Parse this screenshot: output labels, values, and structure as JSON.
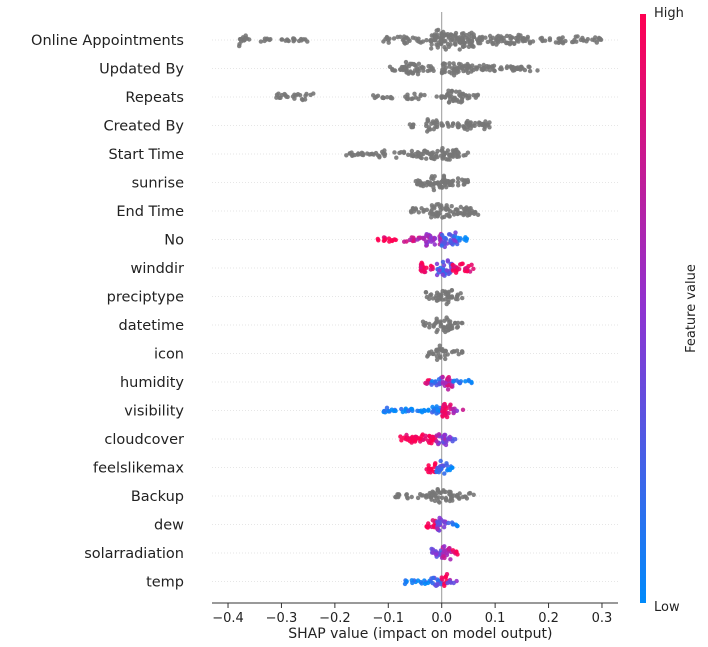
{
  "chart_data": {
    "type": "scatter",
    "subtype": "shap-beeswarm",
    "title": "",
    "xlabel": "SHAP value (impact on model output)",
    "xlim": [
      -0.43,
      0.33
    ],
    "x_ticks": [
      "−0.4",
      "−0.3",
      "−0.2",
      "−0.1",
      "0.0",
      "0.1",
      "0.2",
      "0.3"
    ],
    "x_tick_values": [
      -0.4,
      -0.3,
      -0.2,
      -0.1,
      0.0,
      0.1,
      0.2,
      0.3
    ],
    "colorbar": {
      "title": "Feature value",
      "high_label": "High",
      "low_label": "Low",
      "high_color": "#ff0052",
      "low_color": "#008afb"
    },
    "grid": false,
    "features": [
      {
        "name": "Online Appointments",
        "colored": false,
        "clusters": [
          [
            -0.38,
            -0.36,
            7
          ],
          [
            -0.34,
            -0.32,
            3
          ],
          [
            -0.3,
            -0.25,
            2
          ],
          [
            -0.11,
            -0.02,
            4
          ],
          [
            -0.02,
            0.06,
            11
          ],
          [
            0.06,
            0.15,
            6
          ],
          [
            0.15,
            0.3,
            4
          ]
        ]
      },
      {
        "name": "Updated By",
        "colored": false,
        "clusters": [
          [
            -0.1,
            -0.07,
            3
          ],
          [
            -0.07,
            -0.04,
            8
          ],
          [
            -0.04,
            -0.01,
            4
          ],
          [
            0.0,
            0.03,
            9
          ],
          [
            0.03,
            0.1,
            5
          ],
          [
            0.1,
            0.18,
            3
          ]
        ]
      },
      {
        "name": "Repeats",
        "colored": false,
        "clusters": [
          [
            -0.31,
            -0.24,
            4
          ],
          [
            -0.13,
            -0.09,
            2
          ],
          [
            -0.07,
            -0.03,
            4
          ],
          [
            -0.01,
            0.01,
            2
          ],
          [
            0.01,
            0.04,
            8
          ],
          [
            0.04,
            0.07,
            3
          ]
        ]
      },
      {
        "name": "Created By",
        "colored": false,
        "clusters": [
          [
            -0.06,
            -0.05,
            2
          ],
          [
            -0.03,
            0.0,
            7
          ],
          [
            0.0,
            0.04,
            3
          ],
          [
            0.04,
            0.09,
            5
          ]
        ]
      },
      {
        "name": "Start Time",
        "colored": false,
        "clusters": [
          [
            -0.18,
            -0.12,
            2
          ],
          [
            -0.12,
            -0.04,
            4
          ],
          [
            -0.04,
            0.0,
            6
          ],
          [
            0.0,
            0.03,
            8
          ],
          [
            0.03,
            0.05,
            4
          ]
        ]
      },
      {
        "name": "sunrise",
        "colored": false,
        "clusters": [
          [
            -0.05,
            -0.02,
            5
          ],
          [
            -0.02,
            0.01,
            9
          ],
          [
            0.01,
            0.05,
            5
          ]
        ]
      },
      {
        "name": "End Time",
        "colored": false,
        "clusters": [
          [
            -0.06,
            -0.02,
            4
          ],
          [
            -0.02,
            0.02,
            9
          ],
          [
            0.02,
            0.07,
            5
          ]
        ]
      },
      {
        "name": "No",
        "colored": true,
        "clusters": [
          [
            -0.12,
            -0.08,
            3,
            1.0
          ],
          [
            -0.08,
            -0.03,
            4,
            0.7
          ],
          [
            -0.03,
            0.0,
            8,
            0.6
          ],
          [
            0.0,
            0.03,
            9,
            0.3
          ],
          [
            0.03,
            0.05,
            3,
            0.0
          ]
        ]
      },
      {
        "name": "winddir",
        "colored": true,
        "clusters": [
          [
            -0.04,
            -0.01,
            6,
            0.9
          ],
          [
            -0.01,
            0.02,
            9,
            0.3
          ],
          [
            0.02,
            0.06,
            6,
            0.95
          ]
        ]
      },
      {
        "name": "preciptype",
        "colored": false,
        "clusters": [
          [
            -0.03,
            0.0,
            5
          ],
          [
            0.0,
            0.02,
            8
          ],
          [
            0.02,
            0.04,
            4
          ]
        ]
      },
      {
        "name": "datetime",
        "colored": false,
        "clusters": [
          [
            -0.04,
            -0.01,
            4
          ],
          [
            -0.01,
            0.02,
            9
          ],
          [
            0.02,
            0.04,
            4
          ]
        ]
      },
      {
        "name": "icon",
        "colored": false,
        "clusters": [
          [
            -0.03,
            -0.01,
            4
          ],
          [
            -0.01,
            0.01,
            8
          ],
          [
            0.01,
            0.04,
            4
          ]
        ]
      },
      {
        "name": "humidity",
        "colored": true,
        "clusters": [
          [
            -0.04,
            -0.02,
            3,
            0.9
          ],
          [
            -0.02,
            0.0,
            6,
            0.2
          ],
          [
            0.0,
            0.02,
            8,
            0.7
          ],
          [
            0.02,
            0.06,
            3,
            0.05
          ]
        ]
      },
      {
        "name": "visibility",
        "colored": true,
        "clusters": [
          [
            -0.11,
            -0.02,
            3,
            0.05
          ],
          [
            -0.02,
            0.0,
            5,
            0.15
          ],
          [
            0.0,
            0.02,
            8,
            0.9
          ],
          [
            0.02,
            0.04,
            3,
            0.6
          ]
        ]
      },
      {
        "name": "cloudcover",
        "colored": true,
        "clusters": [
          [
            -0.08,
            -0.01,
            5,
            1.0
          ],
          [
            -0.01,
            0.01,
            9,
            0.5
          ],
          [
            0.01,
            0.03,
            4,
            0.35
          ]
        ]
      },
      {
        "name": "feelslikemax",
        "colored": true,
        "clusters": [
          [
            -0.03,
            -0.01,
            6,
            1.0
          ],
          [
            -0.01,
            0.01,
            8,
            0.3
          ],
          [
            0.01,
            0.02,
            3,
            0.05
          ]
        ]
      },
      {
        "name": "Backup",
        "colored": false,
        "clusters": [
          [
            -0.09,
            -0.02,
            3
          ],
          [
            -0.02,
            0.02,
            8
          ],
          [
            0.02,
            0.06,
            4
          ]
        ]
      },
      {
        "name": "dew",
        "colored": true,
        "clusters": [
          [
            -0.03,
            -0.01,
            5,
            1.0
          ],
          [
            -0.01,
            0.01,
            8,
            0.45
          ],
          [
            0.01,
            0.03,
            3,
            0.1
          ]
        ]
      },
      {
        "name": "solarradiation",
        "colored": true,
        "clusters": [
          [
            -0.02,
            0.0,
            7,
            0.35
          ],
          [
            0.0,
            0.02,
            8,
            0.65
          ],
          [
            0.02,
            0.03,
            4,
            0.95
          ]
        ]
      },
      {
        "name": "temp",
        "colored": true,
        "clusters": [
          [
            -0.07,
            -0.02,
            3,
            0.05
          ],
          [
            -0.02,
            0.0,
            6,
            0.3
          ],
          [
            0.0,
            0.01,
            8,
            0.9
          ],
          [
            0.01,
            0.03,
            3,
            0.5
          ]
        ]
      }
    ]
  }
}
